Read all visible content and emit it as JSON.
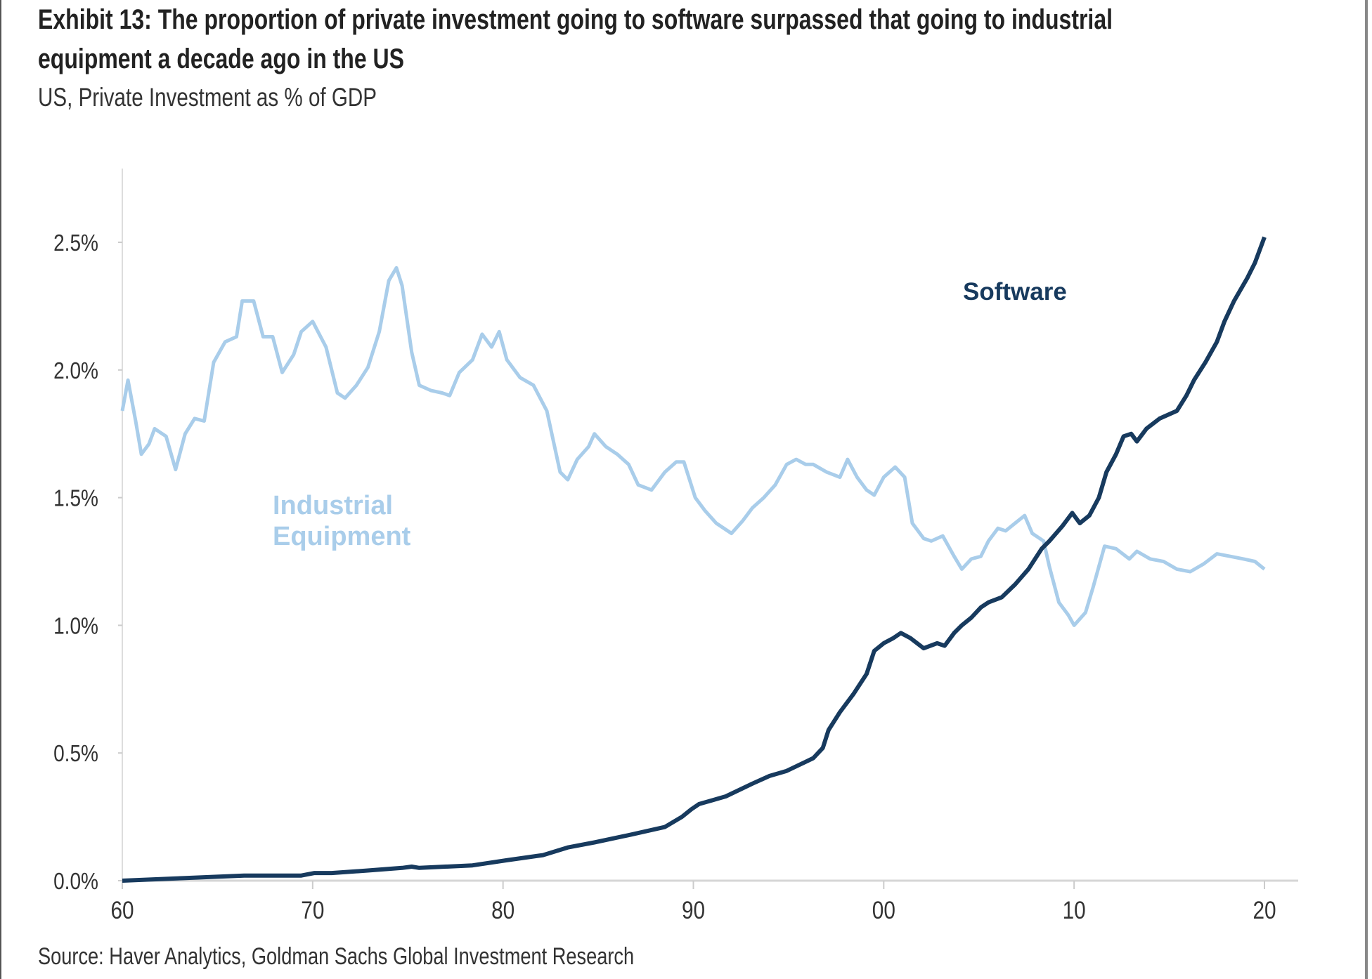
{
  "chart_data": {
    "type": "line",
    "title": "Exhibit 13: The proportion of private investment going to software surpassed that going to industrial equipment a decade ago in the US",
    "title_lines": [
      "Exhibit 13: The proportion of private investment going to software surpassed that going to industrial",
      "equipment a decade ago in the US"
    ],
    "subtitle": "US, Private Investment as % of GDP",
    "source": "Source: Haver Analytics, Goldman Sachs Global Investment Research",
    "xlabel": "",
    "ylabel": "",
    "xlim": [
      1960,
      2020
    ],
    "ylim": [
      0,
      2.5
    ],
    "grid": false,
    "x_ticks": [
      1960,
      1970,
      1980,
      1990,
      2000,
      2010,
      2020
    ],
    "x_tick_labels": [
      "60",
      "70",
      "80",
      "90",
      "00",
      "10",
      "20"
    ],
    "y_ticks": [
      0,
      0.5,
      1.0,
      1.5,
      2.0,
      2.5
    ],
    "y_tick_labels": [
      "0.0%",
      "0.5%",
      "1.0%",
      "1.5%",
      "2.0%",
      "2.5%"
    ],
    "series": [
      {
        "name": "Industrial Equipment",
        "label_lines": [
          "Industrial",
          "Equipment"
        ],
        "color": "#a9cdea",
        "x": [
          1960.0,
          1960.3,
          1960.7,
          1961.0,
          1961.4,
          1961.7,
          1962.3,
          1962.8,
          1963.3,
          1963.8,
          1964.3,
          1964.8,
          1965.4,
          1966.0,
          1966.3,
          1966.9,
          1967.4,
          1967.9,
          1968.4,
          1969.0,
          1969.4,
          1970.0,
          1970.7,
          1971.3,
          1971.7,
          1972.3,
          1972.9,
          1973.5,
          1974.0,
          1974.4,
          1974.7,
          1975.2,
          1975.6,
          1976.2,
          1976.8,
          1977.2,
          1977.7,
          1978.4,
          1978.9,
          1979.4,
          1979.8,
          1980.2,
          1980.9,
          1981.6,
          1982.3,
          1983.0,
          1983.4,
          1983.9,
          1984.5,
          1984.8,
          1985.4,
          1986.0,
          1986.6,
          1987.1,
          1987.8,
          1988.5,
          1989.1,
          1989.5,
          1990.1,
          1990.6,
          1991.2,
          1992.0,
          1992.6,
          1993.1,
          1993.7,
          1994.3,
          1994.9,
          1995.4,
          1995.9,
          1996.3,
          1997.0,
          1997.7,
          1998.1,
          1998.6,
          1999.1,
          1999.5,
          2000.0,
          2000.6,
          2001.1,
          2001.5,
          2002.1,
          2002.5,
          2003.1,
          2003.7,
          2004.1,
          2004.6,
          2005.1,
          2005.5,
          2006.0,
          2006.4,
          2006.9,
          2007.4,
          2007.8,
          2008.4,
          2008.7,
          2009.2,
          2009.7,
          2010.0,
          2010.6,
          2011.0,
          2011.6,
          2012.2,
          2012.9,
          2013.3,
          2014.0,
          2014.7,
          2015.4,
          2016.1,
          2016.8,
          2017.5,
          2018.2,
          2018.9,
          2019.5,
          2020.0
        ],
        "values": [
          1.84,
          1.96,
          1.8,
          1.67,
          1.71,
          1.77,
          1.74,
          1.61,
          1.75,
          1.81,
          1.8,
          2.03,
          2.11,
          2.13,
          2.27,
          2.27,
          2.13,
          2.13,
          1.99,
          2.06,
          2.15,
          2.19,
          2.09,
          1.91,
          1.89,
          1.94,
          2.01,
          2.15,
          2.35,
          2.4,
          2.33,
          2.07,
          1.94,
          1.92,
          1.91,
          1.9,
          1.99,
          2.04,
          2.14,
          2.09,
          2.15,
          2.04,
          1.97,
          1.94,
          1.84,
          1.6,
          1.57,
          1.65,
          1.7,
          1.75,
          1.7,
          1.67,
          1.63,
          1.55,
          1.53,
          1.6,
          1.64,
          1.64,
          1.5,
          1.45,
          1.4,
          1.36,
          1.41,
          1.46,
          1.5,
          1.55,
          1.63,
          1.65,
          1.63,
          1.63,
          1.6,
          1.58,
          1.65,
          1.58,
          1.53,
          1.51,
          1.58,
          1.62,
          1.58,
          1.4,
          1.34,
          1.33,
          1.35,
          1.27,
          1.22,
          1.26,
          1.27,
          1.33,
          1.38,
          1.37,
          1.4,
          1.43,
          1.36,
          1.33,
          1.23,
          1.09,
          1.04,
          1.0,
          1.05,
          1.15,
          1.31,
          1.3,
          1.26,
          1.29,
          1.26,
          1.25,
          1.22,
          1.21,
          1.24,
          1.28,
          1.27,
          1.26,
          1.25,
          1.22
        ]
      },
      {
        "name": "Software",
        "label_lines": [
          "Software"
        ],
        "color": "#173a5e",
        "x": [
          1960.0,
          1963.2,
          1966.4,
          1969.4,
          1970.1,
          1971.0,
          1972.9,
          1974.7,
          1975.2,
          1975.6,
          1978.4,
          1980.2,
          1982.1,
          1983.4,
          1984.8,
          1986.7,
          1988.5,
          1989.4,
          1989.9,
          1990.3,
          1991.7,
          1993.1,
          1994.0,
          1994.9,
          1996.3,
          1996.8,
          1997.1,
          1997.7,
          1998.4,
          1999.1,
          1999.5,
          2000.0,
          2000.5,
          2000.9,
          2001.4,
          2002.1,
          2002.8,
          2003.2,
          2003.7,
          2004.1,
          2004.6,
          2005.1,
          2005.5,
          2006.2,
          2006.9,
          2007.6,
          2008.3,
          2008.7,
          2009.4,
          2009.9,
          2010.3,
          2010.8,
          2011.3,
          2011.7,
          2012.2,
          2012.6,
          2013.0,
          2013.3,
          2013.8,
          2014.5,
          2015.4,
          2015.9,
          2016.3,
          2016.9,
          2017.5,
          2017.9,
          2018.4,
          2019.1,
          2019.5,
          2020.0
        ],
        "values": [
          0.0,
          0.01,
          0.02,
          0.02,
          0.03,
          0.03,
          0.04,
          0.05,
          0.055,
          0.05,
          0.06,
          0.08,
          0.1,
          0.13,
          0.15,
          0.18,
          0.21,
          0.25,
          0.28,
          0.3,
          0.33,
          0.38,
          0.41,
          0.43,
          0.48,
          0.52,
          0.59,
          0.66,
          0.73,
          0.81,
          0.9,
          0.93,
          0.95,
          0.97,
          0.95,
          0.91,
          0.93,
          0.92,
          0.97,
          1.0,
          1.03,
          1.07,
          1.09,
          1.11,
          1.16,
          1.22,
          1.3,
          1.33,
          1.39,
          1.44,
          1.4,
          1.43,
          1.5,
          1.6,
          1.67,
          1.74,
          1.75,
          1.72,
          1.77,
          1.81,
          1.84,
          1.9,
          1.96,
          2.03,
          2.11,
          2.19,
          2.27,
          2.36,
          2.42,
          2.52
        ]
      }
    ]
  }
}
